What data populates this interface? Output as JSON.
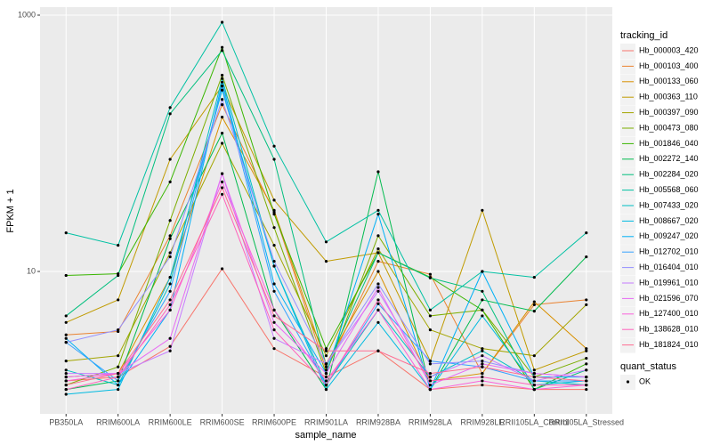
{
  "chart_data": {
    "type": "line",
    "x_label": "sample_name",
    "y_label": "FPKM + 1",
    "categories": [
      "PB350LA",
      "RRIM600LA",
      "RRIM600LE",
      "RRIM600SE",
      "RRIM600PE",
      "RRIM901LA",
      "RRIM928BA",
      "RRIM928LA",
      "RRIM928LE",
      "RRII105LA_Control",
      "RRII105LA_Stressed"
    ],
    "ylim": [
      0.774,
      1155
    ],
    "yticks": [
      10,
      1000
    ],
    "log_y": true,
    "grid": true,
    "legend_title": "tracking_id",
    "point_legend": {
      "title": "quant_status",
      "labels": [
        "OK"
      ]
    },
    "point_color": "#000000",
    "series": [
      {
        "name": "Hb_000003_420",
        "color": "#F8766D",
        "values": [
          1.4,
          1.5,
          2.6,
          10.5,
          2.5,
          1.5,
          2.4,
          1.2,
          1.3,
          1.2,
          1.2
        ]
      },
      {
        "name": "Hb_000103_400",
        "color": "#EA8331",
        "values": [
          3.2,
          3.4,
          19,
          200,
          29,
          1.7,
          12,
          9.5,
          1.6,
          5.5,
          6
        ]
      },
      {
        "name": "Hb_000133_060",
        "color": "#D89000",
        "values": [
          1.5,
          1.6,
          9,
          160,
          30,
          1.9,
          10,
          1.4,
          1.6,
          5.8,
          2.5
        ]
      },
      {
        "name": "Hb_000363_110",
        "color": "#C09B00",
        "values": [
          4,
          6,
          75,
          280,
          36,
          12,
          14,
          2,
          30,
          1.7,
          2.4
        ]
      },
      {
        "name": "Hb_000397_090",
        "color": "#A3A500",
        "values": [
          2,
          2.2,
          14,
          100,
          16,
          2.2,
          15,
          3.5,
          2.5,
          2.2,
          5.5
        ]
      },
      {
        "name": "Hb_000473_080",
        "color": "#7CAE00",
        "values": [
          1.3,
          1.8,
          25,
          340,
          22,
          1.6,
          19,
          4.5,
          5,
          1.5,
          2.1
        ]
      },
      {
        "name": "Hb_001846_040",
        "color": "#39B600",
        "values": [
          9.3,
          9.6,
          50,
          560,
          28,
          2.5,
          14,
          9,
          5,
          1.2,
          1.9
        ]
      },
      {
        "name": "Hb_002272_140",
        "color": "#00BB4E",
        "values": [
          1.2,
          1.4,
          18,
          120,
          5,
          1.2,
          60,
          1.2,
          6,
          4.9,
          13
        ]
      },
      {
        "name": "Hb_002284_020",
        "color": "#00BF7D",
        "values": [
          4.5,
          9.3,
          170,
          530,
          75,
          1.8,
          14,
          8.9,
          7,
          1.2,
          1.7
        ]
      },
      {
        "name": "Hb_005568_060",
        "color": "#00C1A3",
        "values": [
          20,
          16,
          190,
          880,
          95,
          17,
          30,
          5,
          10,
          9,
          20
        ]
      },
      {
        "name": "Hb_007433_020",
        "color": "#00BFC4",
        "values": [
          1.7,
          1.3,
          8,
          320,
          11,
          1.3,
          5,
          1.5,
          2.4,
          1.4,
          1.3
        ]
      },
      {
        "name": "Hb_008667_020",
        "color": "#00BAE0",
        "values": [
          1.1,
          1.2,
          9,
          260,
          11,
          1.2,
          4,
          1.2,
          4.5,
          1.3,
          1.4
        ]
      },
      {
        "name": "Hb_009247_020",
        "color": "#00B0F6",
        "values": [
          3,
          1.3,
          5,
          300,
          8,
          1.6,
          28,
          1.2,
          10,
          1.5,
          1.5
        ]
      },
      {
        "name": "Hb_012702_010",
        "color": "#35A2FF",
        "values": [
          2.8,
          1.4,
          7,
          280,
          7,
          1.3,
          5.6,
          2,
          1.8,
          1.4,
          1.4
        ]
      },
      {
        "name": "Hb_016404_010",
        "color": "#9590FF",
        "values": [
          2.8,
          3.5,
          13,
          220,
          12,
          1.9,
          8,
          1.9,
          2,
          1.6,
          1.5
        ]
      },
      {
        "name": "Hb_019961_010",
        "color": "#C77CFF",
        "values": [
          1.6,
          1.6,
          2.4,
          58,
          3,
          1.9,
          7,
          1.5,
          2.2,
          1.4,
          1.7
        ]
      },
      {
        "name": "Hb_021596_070",
        "color": "#E76BF3",
        "values": [
          1.5,
          1.6,
          3,
          58,
          4,
          1.6,
          7.5,
          1.3,
          1.9,
          1.6,
          1.5
        ]
      },
      {
        "name": "Hb_127400_010",
        "color": "#FA62DB",
        "values": [
          1.4,
          1.6,
          5,
          50,
          5,
          1.4,
          5,
          1.2,
          1.4,
          1.2,
          1.3
        ]
      },
      {
        "name": "Hb_138628_010",
        "color": "#FF62BC",
        "values": [
          1.2,
          1.5,
          5.5,
          40,
          3.5,
          1.3,
          6,
          1.4,
          1.5,
          1.3,
          1.3
        ]
      },
      {
        "name": "Hb_181824_010",
        "color": "#FF6C91",
        "values": [
          1.3,
          1.6,
          6,
          45,
          4.5,
          2.4,
          2.4,
          1.6,
          1.8,
          1.5,
          1.4
        ]
      }
    ]
  }
}
